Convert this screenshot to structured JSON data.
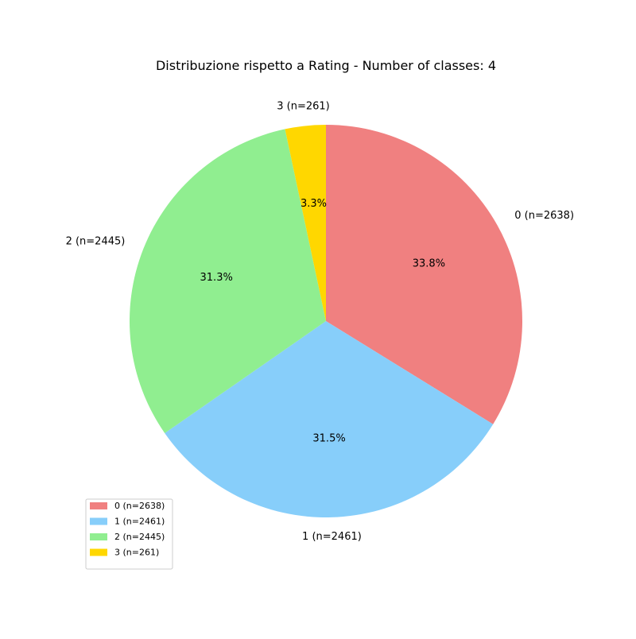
{
  "chart_data": {
    "type": "pie",
    "title": "Distribuzione rispetto a Rating - Number of classes: 4",
    "start_angle_deg": 90,
    "direction": "clockwise",
    "legend_position": "lower-left",
    "slices": [
      {
        "label": "0 (n=2638)",
        "value": 2638,
        "pct_label": "33.8%",
        "color": "#F08080"
      },
      {
        "label": "1 (n=2461)",
        "value": 2461,
        "pct_label": "31.5%",
        "color": "#87CEFA"
      },
      {
        "label": "2 (n=2445)",
        "value": 2445,
        "pct_label": "31.3%",
        "color": "#90EE90"
      },
      {
        "label": "3 (n=261)",
        "value": 261,
        "pct_label": "3.3%",
        "color": "#FFD700"
      }
    ]
  }
}
